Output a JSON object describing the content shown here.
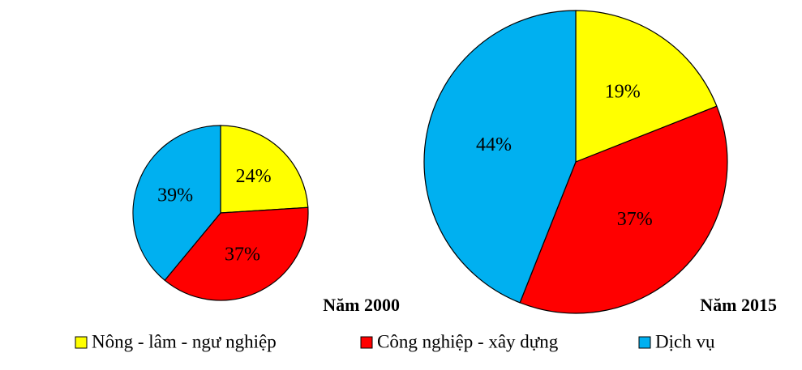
{
  "chart_data": {
    "type": "pie",
    "categories": [
      "Nông - lâm - ngư nghiệp",
      "Công nghiệp - xây dựng",
      "Dịch vụ"
    ],
    "colors": [
      "#ffff00",
      "#ff0000",
      "#00b0f0"
    ],
    "series": [
      {
        "name": "Năm 2000",
        "values": [
          24,
          37,
          39
        ],
        "value_labels": [
          "24%",
          "37%",
          "39%"
        ]
      },
      {
        "name": "Năm 2015",
        "values": [
          19,
          37,
          44
        ],
        "value_labels": [
          "19%",
          "37%",
          "44%"
        ]
      }
    ]
  }
}
